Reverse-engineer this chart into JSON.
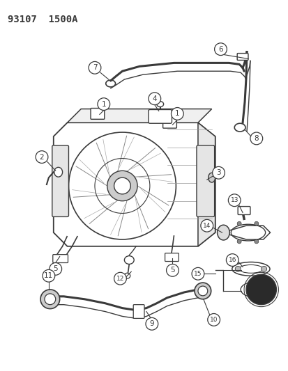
{
  "title": "93107  1500A",
  "bg_color": "#ffffff",
  "line_color": "#3a3a3a",
  "title_fontsize": 10,
  "label_fontsize": 7,
  "fig_width": 4.14,
  "fig_height": 5.33,
  "dpi": 100
}
